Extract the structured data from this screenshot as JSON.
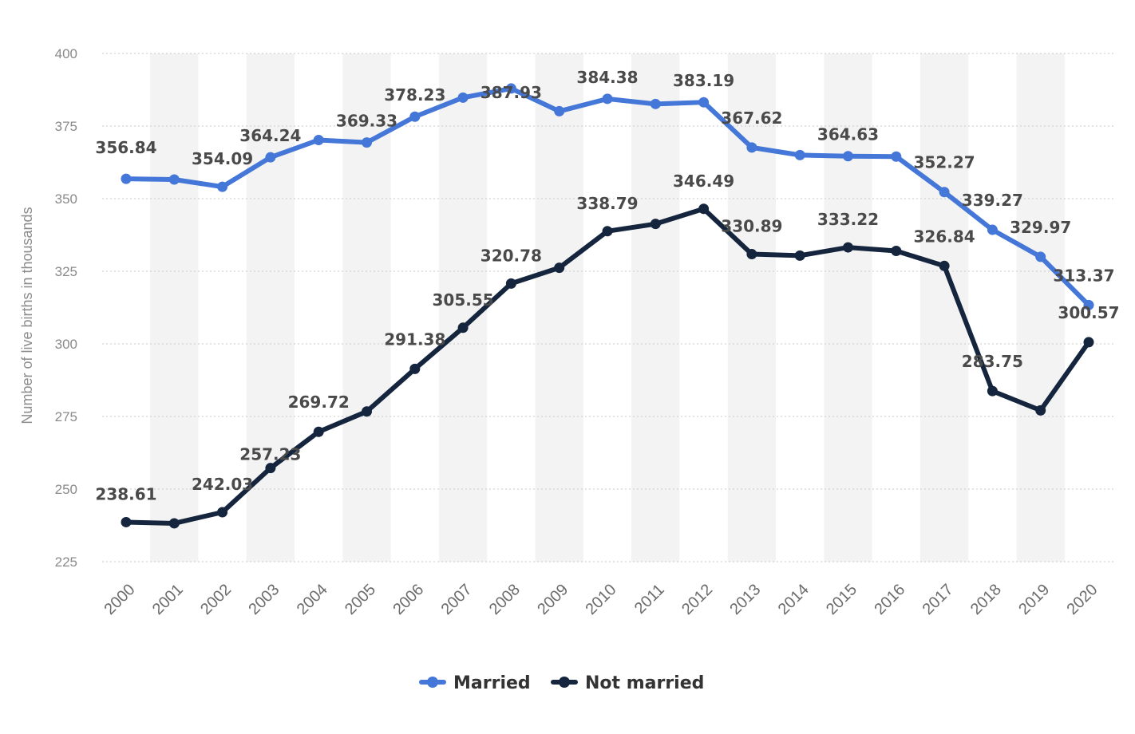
{
  "chart_data": {
    "type": "line",
    "title": "",
    "xlabel": "",
    "ylabel": "Number of live births in thousands",
    "ylim": [
      225,
      400
    ],
    "yticks": [
      225,
      250,
      275,
      300,
      325,
      350,
      375,
      400
    ],
    "categories": [
      "2000",
      "2001",
      "2002",
      "2003",
      "2004",
      "2005",
      "2006",
      "2007",
      "2008",
      "2009",
      "2010",
      "2011",
      "2012",
      "2013",
      "2014",
      "2015",
      "2016",
      "2017",
      "2018",
      "2019",
      "2020"
    ],
    "series": [
      {
        "name": "Married",
        "color": "#4477d8",
        "values": [
          356.84,
          356.6,
          354.09,
          364.24,
          370.2,
          369.33,
          378.23,
          384.8,
          387.93,
          380.1,
          384.38,
          382.6,
          383.19,
          367.62,
          365.0,
          364.63,
          364.5,
          352.27,
          339.27,
          329.97,
          313.37
        ],
        "labels": [
          "356.84",
          "",
          "354.09",
          "364.24",
          "",
          "369.33",
          "378.23",
          "",
          "387.93",
          "",
          "384.38",
          "",
          "383.19",
          "367.62",
          "",
          "364.63",
          "",
          "352.27",
          "339.27",
          "329.97",
          "313.37"
        ]
      },
      {
        "name": "Not married",
        "color": "#14253d",
        "values": [
          238.61,
          238.2,
          242.03,
          257.23,
          269.72,
          276.7,
          291.38,
          305.55,
          320.78,
          326.2,
          338.79,
          341.3,
          346.49,
          330.89,
          330.4,
          333.22,
          332.0,
          326.84,
          283.75,
          277.1,
          300.57
        ],
        "labels": [
          "238.61",
          "",
          "242.03",
          "257.23",
          "269.72",
          "",
          "291.38",
          "305.55",
          "320.78",
          "",
          "338.79",
          "",
          "346.49",
          "330.89",
          "",
          "333.22",
          "",
          "326.84",
          "283.75",
          "",
          "300.57"
        ]
      }
    ],
    "legend": {
      "position": "bottom-center"
    }
  }
}
